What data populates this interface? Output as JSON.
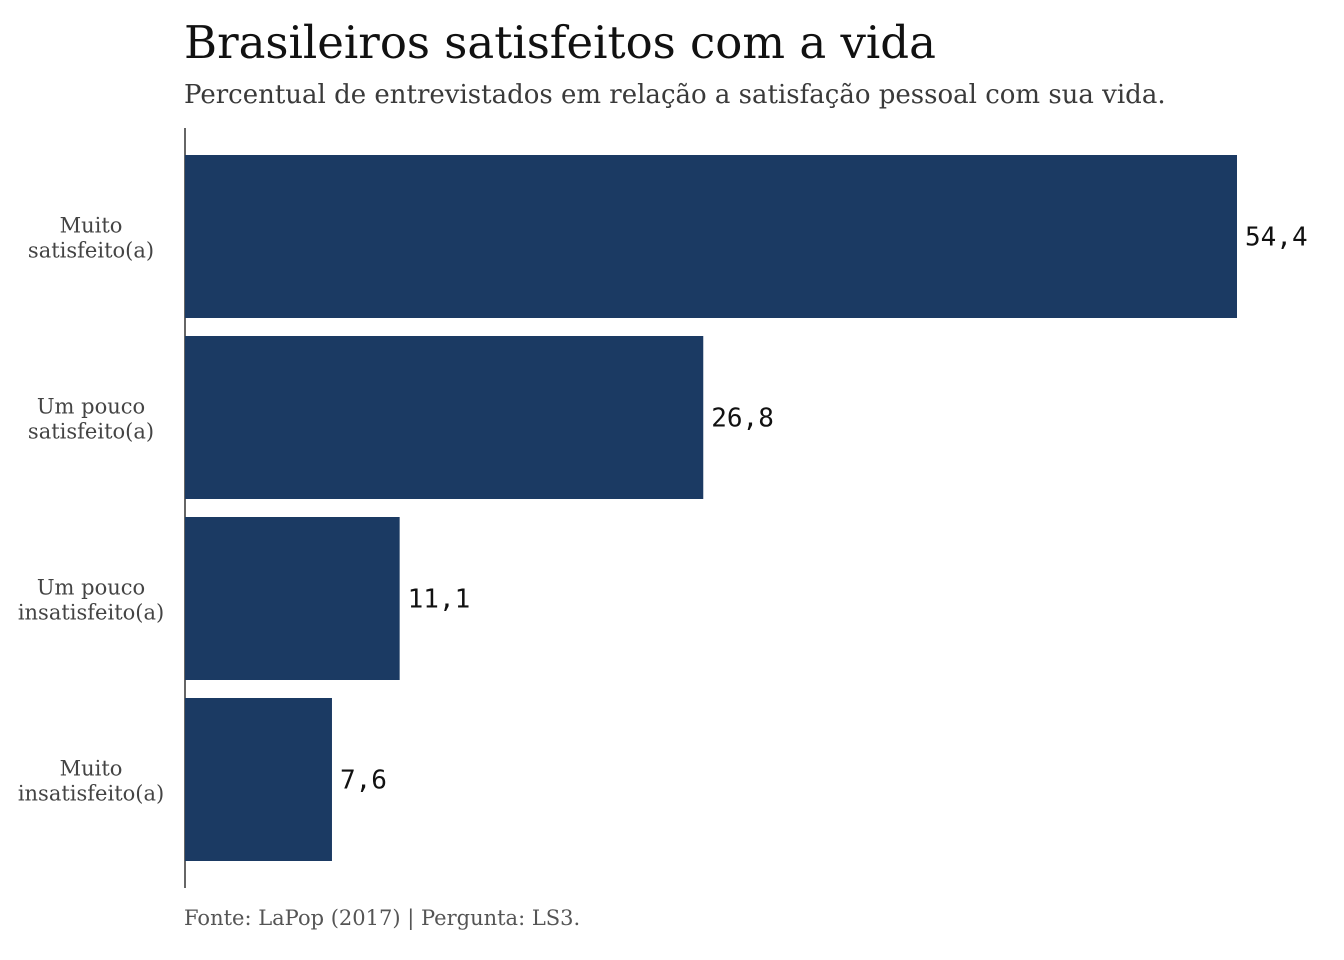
{
  "chart_data": {
    "type": "bar",
    "orientation": "horizontal",
    "title": "Brasileiros satisfeitos com a vida",
    "subtitle": "Percentual de entrevistados em relação a satisfação pessoal com sua vida.",
    "caption": "Fonte: LaPop (2017) | Pergunta: LS3.",
    "categories": [
      [
        "Muito",
        "satisfeito(a)"
      ],
      [
        "Um pouco",
        "satisfeito(a)"
      ],
      [
        "Um pouco",
        "insatisfeito(a)"
      ],
      [
        "Muito",
        "insatisfeito(a)"
      ]
    ],
    "values": [
      54.4,
      26.8,
      11.1,
      7.6
    ],
    "value_labels": [
      "54,4",
      "26,8",
      "11,1",
      "7,6"
    ],
    "xlim": [
      0,
      54.4
    ],
    "bar_color": "#1b3a63",
    "grid": false,
    "legend": "none"
  }
}
